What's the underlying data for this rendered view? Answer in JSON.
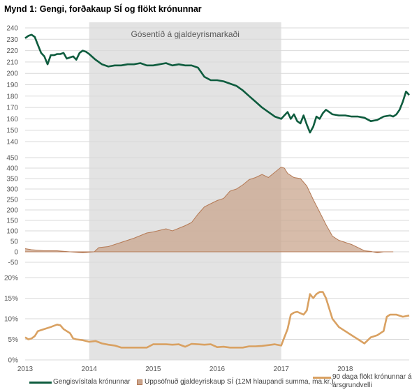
{
  "title": "Mynd 1: Gengi, forðakaup SÍ og flökt krónunnar",
  "annotation": "Gósentíð á gjaldeyrismarkaði",
  "colors": {
    "gengi": "#0e5c3e",
    "uppsofnud_fill": "#c9a58e",
    "uppsofnud_stroke": "#b57a55",
    "flokt": "#d9a162",
    "shade": "#e3e3e3",
    "grid": "#d9d9d9"
  },
  "legend": {
    "gengi": "Gengisvísitala krónunnar",
    "uppsofnud": "Uppsöfnuð gjaldeyriskaup SÍ (12M hlaupandi summa, ma.kr.)",
    "flokt_line1": "90 daga flökt krónunnar á",
    "flokt_line2": "ársgrundvelli"
  },
  "chart_data": [
    {
      "type": "line",
      "panel": "top",
      "series": [
        {
          "name": "Gengisvísitala krónunnar",
          "x": [
            2013.0,
            2013.05,
            2013.1,
            2013.15,
            2013.2,
            2013.25,
            2013.3,
            2013.35,
            2013.4,
            2013.45,
            2013.5,
            2013.55,
            2013.6,
            2013.65,
            2013.7,
            2013.75,
            2013.8,
            2013.85,
            2013.9,
            2013.95,
            2014.0,
            2014.1,
            2014.2,
            2014.3,
            2014.4,
            2014.5,
            2014.6,
            2014.7,
            2014.8,
            2014.9,
            2015.0,
            2015.1,
            2015.2,
            2015.3,
            2015.4,
            2015.5,
            2015.6,
            2015.7,
            2015.8,
            2015.9,
            2016.0,
            2016.1,
            2016.2,
            2016.3,
            2016.4,
            2016.5,
            2016.6,
            2016.7,
            2016.8,
            2016.9,
            2017.0,
            2017.05,
            2017.1,
            2017.15,
            2017.2,
            2017.25,
            2017.3,
            2017.35,
            2017.4,
            2017.45,
            2017.5,
            2017.55,
            2017.6,
            2017.65,
            2017.7,
            2017.75,
            2017.8,
            2017.9,
            2018.0,
            2018.1,
            2018.2,
            2018.3,
            2018.4,
            2018.5,
            2018.6,
            2018.7,
            2018.75,
            2018.8,
            2018.85,
            2018.9,
            2018.95,
            2019.0
          ],
          "values": [
            231,
            233,
            234,
            232,
            225,
            218,
            215,
            208,
            216,
            216,
            217,
            217,
            218,
            213,
            214,
            215,
            212,
            218,
            220,
            219,
            217,
            212,
            208,
            206,
            207,
            207,
            208,
            208,
            209,
            207,
            207,
            208,
            209,
            207,
            208,
            207,
            207,
            205,
            197,
            194,
            194,
            193,
            191,
            189,
            185,
            180,
            175,
            170,
            166,
            162,
            160,
            163,
            166,
            160,
            164,
            158,
            156,
            163,
            155,
            148,
            153,
            162,
            160,
            165,
            168,
            166,
            164,
            163,
            163,
            162,
            162,
            161,
            158,
            159,
            162,
            163,
            162,
            164,
            168,
            175,
            184,
            181
          ]
        }
      ],
      "ylim": [
        140,
        240
      ],
      "yticks": [
        240,
        230,
        220,
        210,
        200,
        190,
        180,
        170,
        160,
        150,
        140
      ],
      "tick_labels": [
        "240",
        "230",
        "220",
        "210",
        "200",
        "190",
        "180",
        "170",
        "160",
        "150",
        "140"
      ]
    },
    {
      "type": "area",
      "panel": "middle",
      "series": [
        {
          "name": "Uppsöfnuð gjaldeyriskaup SÍ (12M hlaupandi summa, ma.kr.)",
          "x": [
            2013.0,
            2013.1,
            2013.3,
            2013.5,
            2013.7,
            2013.9,
            2014.0,
            2014.08,
            2014.15,
            2014.3,
            2014.5,
            2014.7,
            2014.9,
            2015.0,
            2015.2,
            2015.3,
            2015.5,
            2015.6,
            2015.7,
            2015.8,
            2015.9,
            2016.0,
            2016.1,
            2016.2,
            2016.3,
            2016.4,
            2016.5,
            2016.6,
            2016.7,
            2016.8,
            2016.9,
            2017.0,
            2017.05,
            2017.1,
            2017.2,
            2017.3,
            2017.4,
            2017.5,
            2017.6,
            2017.7,
            2017.8,
            2017.9,
            2018.0,
            2018.1,
            2018.2,
            2018.3,
            2018.4,
            2018.5,
            2018.6,
            2018.75
          ],
          "values": [
            15,
            10,
            5,
            5,
            0,
            -5,
            -2,
            0,
            20,
            25,
            45,
            65,
            90,
            95,
            110,
            100,
            125,
            140,
            180,
            215,
            230,
            245,
            255,
            290,
            300,
            320,
            345,
            355,
            370,
            355,
            380,
            405,
            400,
            375,
            355,
            350,
            315,
            250,
            190,
            130,
            75,
            55,
            45,
            35,
            20,
            5,
            2,
            -5,
            0,
            0
          ]
        }
      ],
      "ylim": [
        -50,
        450
      ],
      "yticks": [
        450,
        400,
        350,
        300,
        250,
        200,
        150,
        100,
        50,
        0,
        -50
      ],
      "tick_labels": [
        "450",
        "400",
        "350",
        "300",
        "250",
        "200",
        "150",
        "100",
        "50",
        "0",
        "-50"
      ]
    },
    {
      "type": "line",
      "panel": "bottom",
      "series": [
        {
          "name": "90 daga flökt krónunnar á ársgrundvelli",
          "x": [
            2013.0,
            2013.05,
            2013.1,
            2013.15,
            2013.2,
            2013.3,
            2013.4,
            2013.5,
            2013.55,
            2013.6,
            2013.7,
            2013.75,
            2013.8,
            2013.9,
            2014.0,
            2014.1,
            2014.2,
            2014.3,
            2014.4,
            2014.5,
            2014.6,
            2014.7,
            2014.8,
            2014.9,
            2015.0,
            2015.1,
            2015.2,
            2015.3,
            2015.4,
            2015.5,
            2015.6,
            2015.7,
            2015.8,
            2015.9,
            2016.0,
            2016.1,
            2016.2,
            2016.3,
            2016.4,
            2016.5,
            2016.6,
            2016.7,
            2016.8,
            2016.9,
            2017.0,
            2017.05,
            2017.1,
            2017.15,
            2017.2,
            2017.25,
            2017.35,
            2017.4,
            2017.45,
            2017.5,
            2017.55,
            2017.6,
            2017.65,
            2017.7,
            2017.8,
            2017.9,
            2018.0,
            2018.1,
            2018.2,
            2018.3,
            2018.4,
            2018.5,
            2018.6,
            2018.65,
            2018.7,
            2018.8,
            2018.9,
            2019.0
          ],
          "values": [
            5.5,
            5.0,
            5.2,
            5.8,
            7.0,
            7.5,
            8.0,
            8.6,
            8.4,
            7.5,
            6.5,
            5.2,
            5.0,
            4.8,
            4.4,
            4.6,
            4.0,
            3.7,
            3.5,
            3.0,
            3.0,
            3.0,
            3.0,
            3.0,
            3.8,
            3.8,
            3.8,
            3.7,
            3.8,
            3.2,
            3.9,
            3.8,
            3.7,
            3.8,
            3.1,
            3.2,
            3.0,
            3.0,
            3.0,
            3.3,
            3.3,
            3.4,
            3.6,
            3.8,
            3.5,
            5.5,
            7.5,
            11.0,
            11.5,
            11.7,
            11.0,
            12.0,
            16.0,
            15.0,
            16.0,
            16.5,
            16.5,
            15.0,
            10.0,
            8.0,
            7.0,
            6.0,
            5.0,
            4.0,
            5.5,
            6.0,
            7.0,
            10.5,
            11.0,
            11.0,
            10.5,
            10.8
          ]
        }
      ],
      "ylim": [
        0,
        20
      ],
      "yticks": [
        20,
        15,
        10,
        5,
        0
      ],
      "tick_labels": [
        "20%",
        "15%",
        "10%",
        "5%",
        "0%"
      ]
    }
  ],
  "x_axis": {
    "range": [
      2013,
      2019
    ],
    "ticks": [
      2013,
      2014,
      2015,
      2016,
      2017,
      2018
    ],
    "tick_labels": [
      "2013",
      "2014",
      "2015",
      "2016",
      "2017",
      "2018"
    ]
  },
  "shaded_period": {
    "from": 2014.0,
    "to": 2017.0,
    "label": "Gósentíð á gjaldeyrismarkaði"
  }
}
